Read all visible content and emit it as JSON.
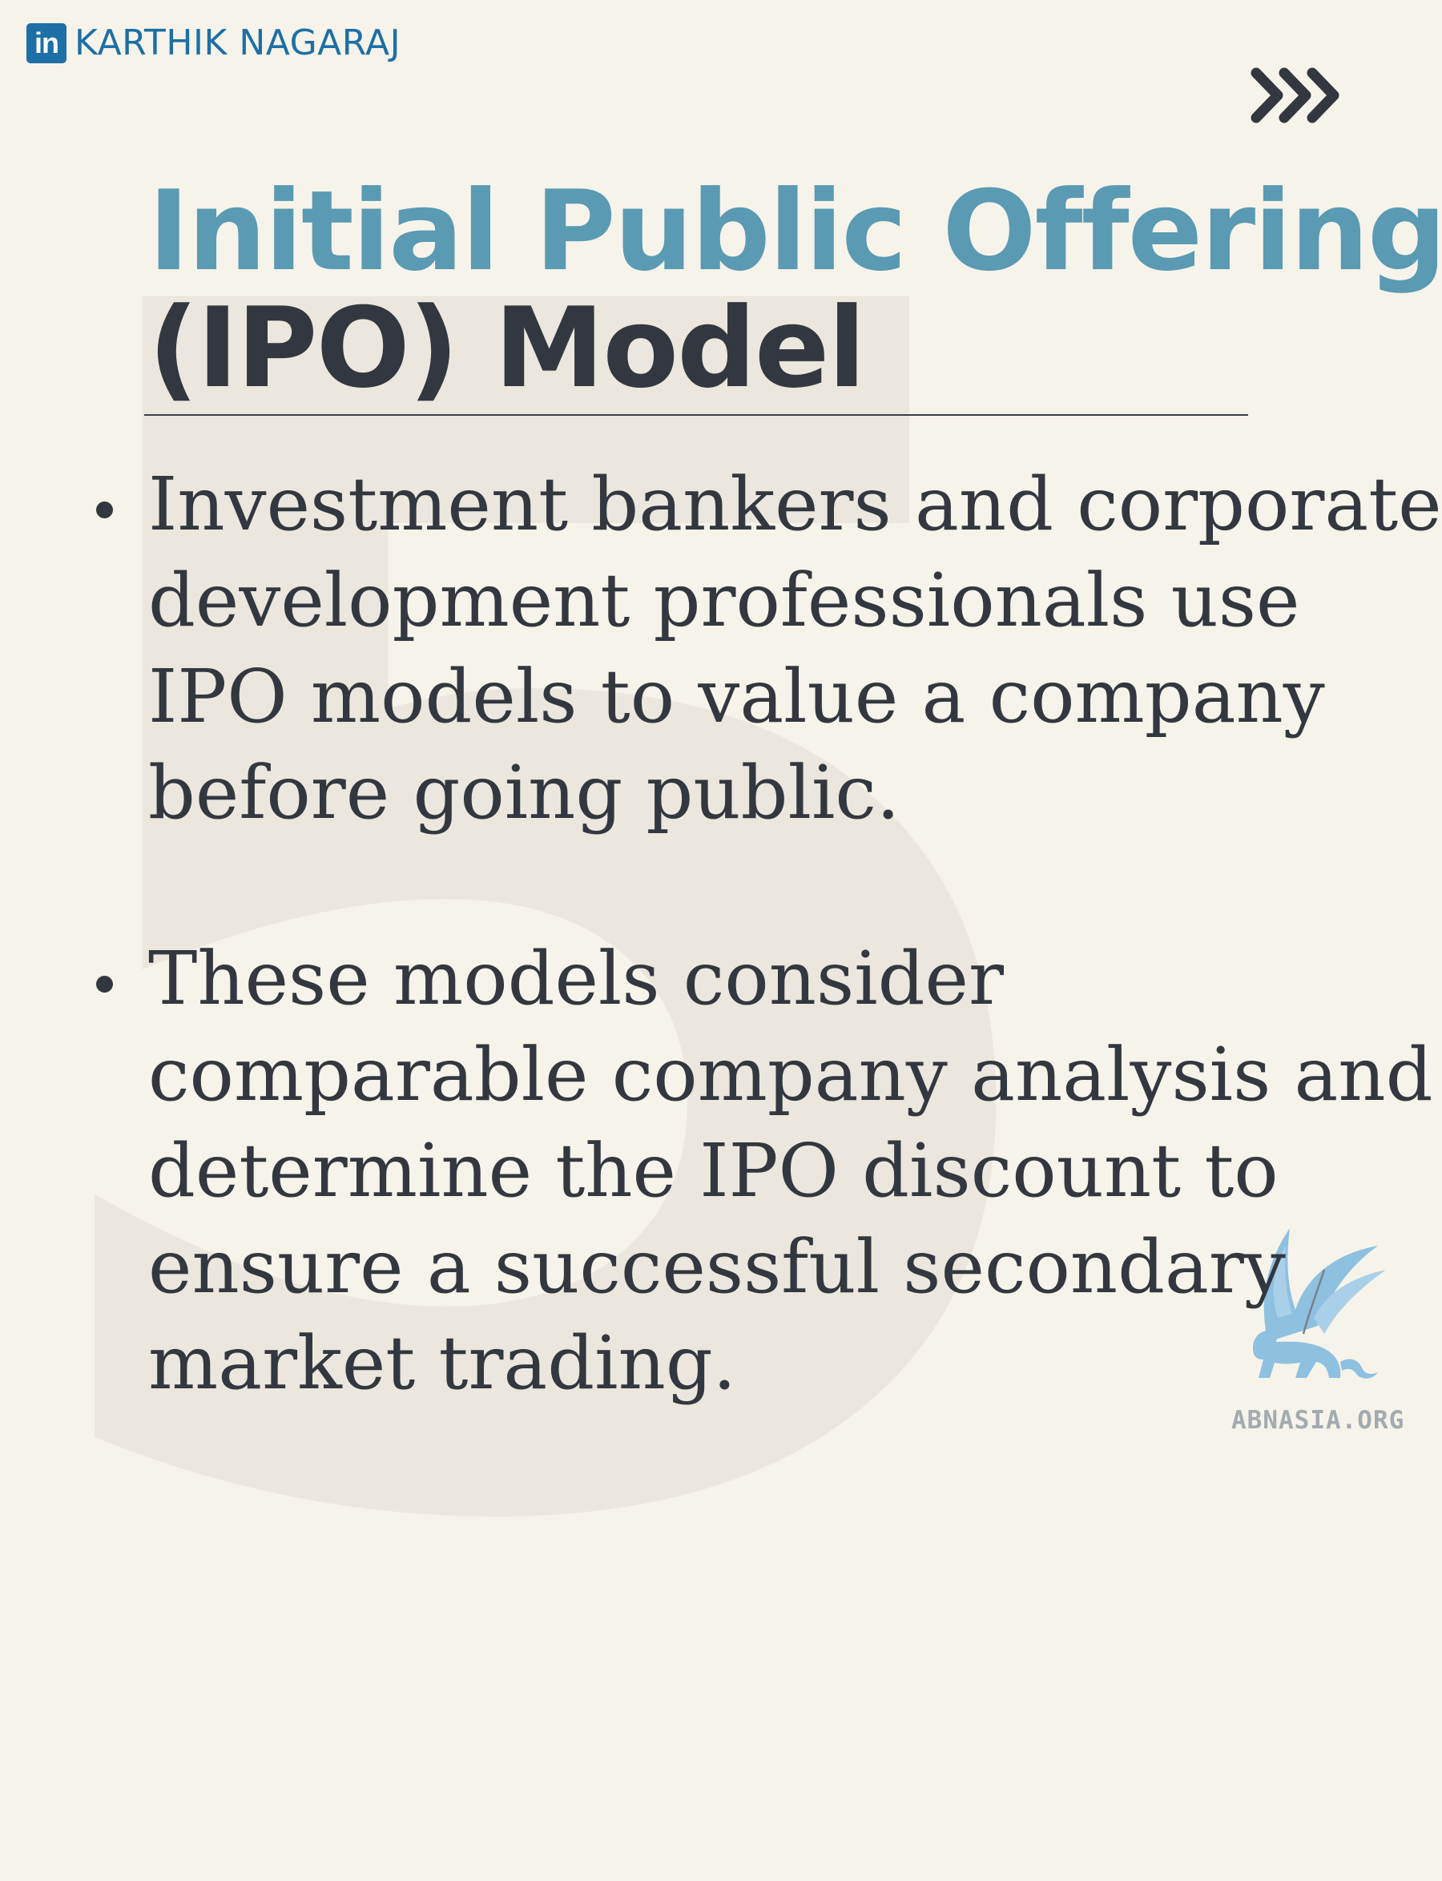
{
  "background_number": "5",
  "brand": {
    "icon_text": "in",
    "name": "KARTHIK NAGARAJ"
  },
  "title": {
    "line1": "Initial Public Offering",
    "line2": "(IPO) Model"
  },
  "bullets": [
    "Investment bankers and corporate development professionals use IPO models to value a company before going public.",
    "These models consider comparable company analysis and determine the IPO discount to ensure a successful secondary market trading."
  ],
  "watermark": {
    "text": "ABNASIA.ORG",
    "icon": "griffin-icon"
  },
  "icons": {
    "next": "triple-chevron-right-icon",
    "linkedin": "linkedin-icon"
  },
  "colors": {
    "background": "#f6f3ea",
    "title_accent": "#5a9ab3",
    "text_dark": "#33373f",
    "linkedin_blue": "#1d6fa5",
    "watermark_blue": "#8ec0e0"
  }
}
